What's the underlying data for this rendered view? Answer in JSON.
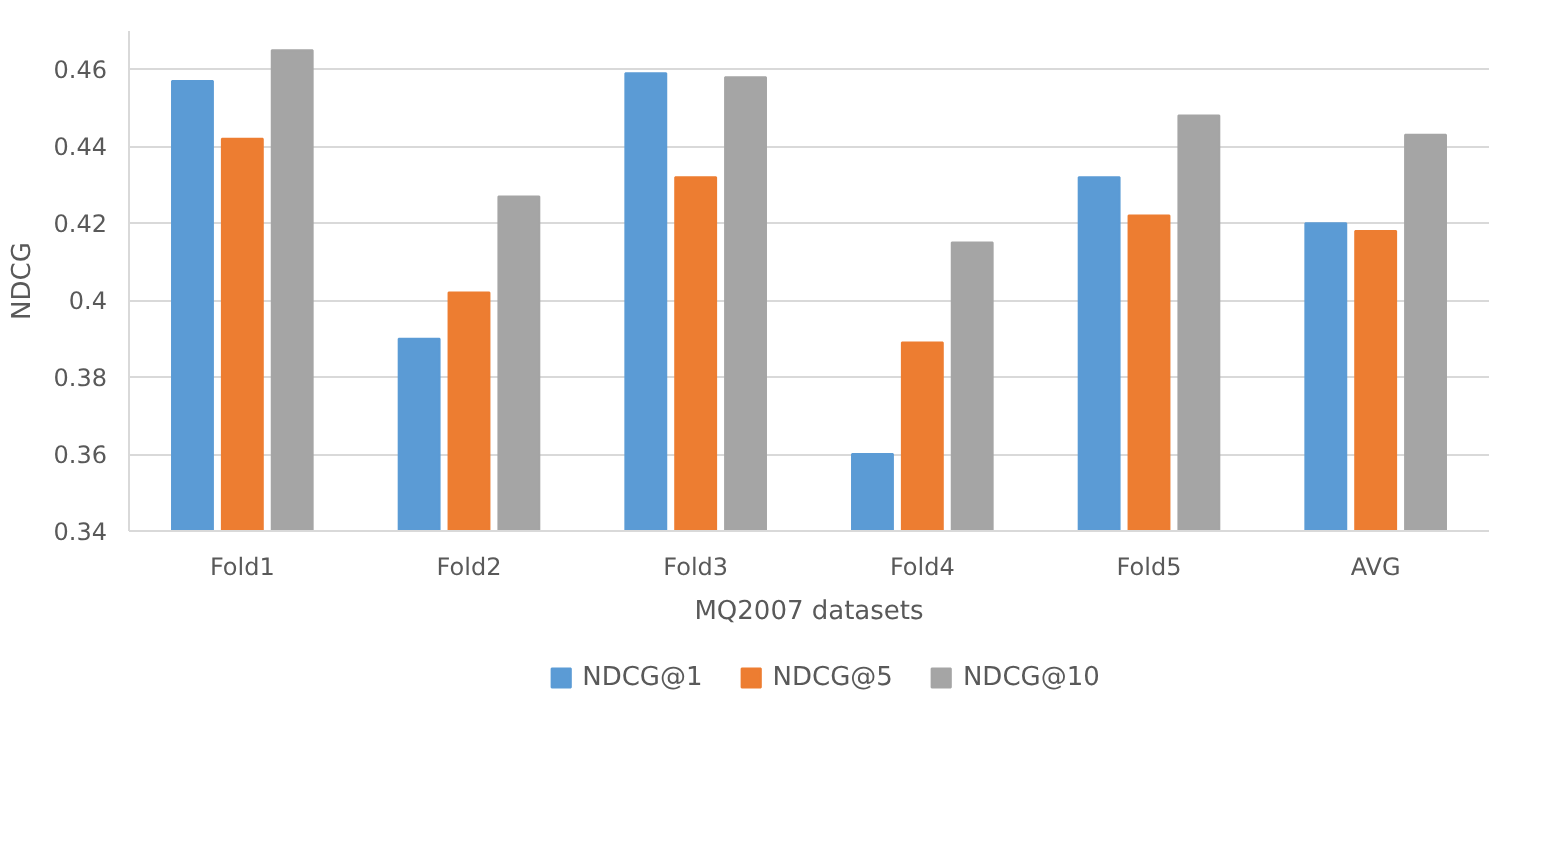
{
  "chart_data": {
    "type": "bar",
    "xlabel": "MQ2007 datasets",
    "ylabel": "NDCG",
    "categories": [
      "Fold1",
      "Fold2",
      "Fold3",
      "Fold4",
      "Fold5",
      "AVG"
    ],
    "series": [
      {
        "name": "NDCG@1",
        "color": "#5b9bd5",
        "values": [
          0.457,
          0.39,
          0.459,
          0.36,
          0.432,
          0.42
        ]
      },
      {
        "name": "NDCG@5",
        "color": "#ed7d31",
        "values": [
          0.442,
          0.402,
          0.432,
          0.389,
          0.422,
          0.418
        ]
      },
      {
        "name": "NDCG@10",
        "color": "#a5a5a5",
        "values": [
          0.465,
          0.427,
          0.458,
          0.415,
          0.448,
          0.443
        ]
      }
    ],
    "ylim": [
      0.34,
      0.47
    ],
    "yticks": [
      {
        "value": 0.34,
        "label": "0.34"
      },
      {
        "value": 0.36,
        "label": "0.36"
      },
      {
        "value": 0.38,
        "label": "0.38"
      },
      {
        "value": 0.4,
        "label": "0.4"
      },
      {
        "value": 0.42,
        "label": "0.42"
      },
      {
        "value": 0.44,
        "label": "0.44"
      },
      {
        "value": 0.46,
        "label": "0.46"
      }
    ],
    "grid": "y",
    "legend": "bottom"
  }
}
